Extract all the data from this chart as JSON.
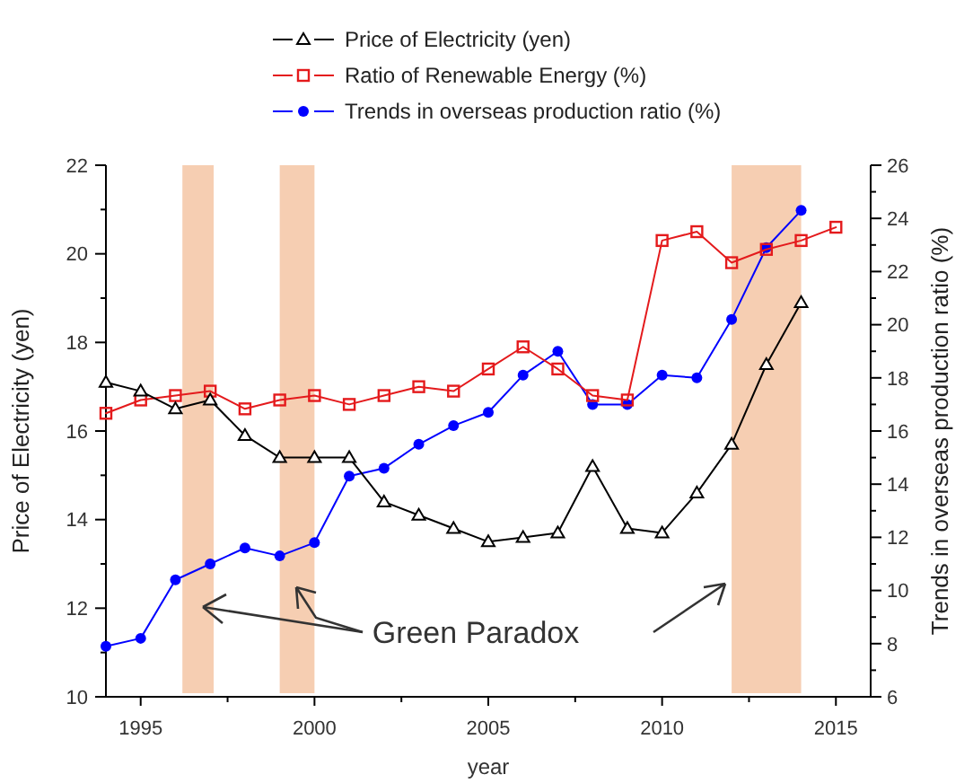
{
  "chart_data": {
    "type": "line",
    "xlabel": "year",
    "ylabel": "Price of Electricity (yen)",
    "y2label": "Trends in overseas production ratio (%)",
    "xlim": [
      1994,
      2016
    ],
    "xticks": [
      {
        "value": 1995,
        "label": "1995"
      },
      {
        "value": 1997.5,
        "label": null
      },
      {
        "value": 2000,
        "label": "2000"
      },
      {
        "value": 2002.5,
        "label": null
      },
      {
        "value": 2005,
        "label": "2005"
      },
      {
        "value": 2007.5,
        "label": null
      },
      {
        "value": 2010,
        "label": "2010"
      },
      {
        "value": 2012.5,
        "label": null
      },
      {
        "value": 2015,
        "label": "2015"
      }
    ],
    "ylim": [
      10,
      22
    ],
    "yticks": [
      10,
      {
        "value": 11,
        "label": null
      },
      12,
      {
        "value": 13,
        "label": null
      },
      14,
      {
        "value": 15,
        "label": null
      },
      16,
      {
        "value": 17,
        "label": null
      },
      18,
      {
        "value": 19,
        "label": null
      },
      20,
      {
        "value": 21,
        "label": null
      },
      22
    ],
    "y2lim": [
      6,
      26
    ],
    "y2ticks": [
      6,
      {
        "value": 7,
        "label": null
      },
      8,
      {
        "value": 9,
        "label": null
      },
      10,
      {
        "value": 11,
        "label": null
      },
      12,
      {
        "value": 13,
        "label": null
      },
      14,
      {
        "value": 15,
        "label": null
      },
      16,
      {
        "value": 17,
        "label": null
      },
      18,
      {
        "value": 19,
        "label": null
      },
      20,
      {
        "value": 21,
        "label": null
      },
      22,
      {
        "value": 23,
        "label": null
      },
      24,
      {
        "value": 25,
        "label": null
      },
      26
    ],
    "legend": "top",
    "grid": false,
    "series": [
      {
        "name": "Price of Electricity (yen)",
        "color": "#000000",
        "marker": "triangle",
        "x": [
          1994,
          1995,
          1996,
          1997,
          1998,
          1999,
          2000,
          2001,
          2002,
          2003,
          2004,
          2005,
          2006,
          2007,
          2008,
          2009,
          2010,
          2011,
          2012,
          2013,
          2014
        ],
        "values": [
          17.1,
          16.9,
          16.5,
          16.7,
          15.9,
          15.4,
          15.4,
          15.4,
          14.4,
          14.1,
          13.8,
          13.5,
          13.6,
          13.7,
          15.2,
          13.8,
          13.7,
          14.6,
          15.7,
          17.5,
          18.9
        ]
      },
      {
        "name": "Ratio of Renewable Energy (%)",
        "color": "#e41a1c",
        "marker": "square",
        "x": [
          1994,
          1995,
          1996,
          1997,
          1998,
          1999,
          2000,
          2001,
          2002,
          2003,
          2004,
          2005,
          2006,
          2007,
          2008,
          2009,
          2010,
          2011,
          2012,
          2013,
          2014,
          2015
        ],
        "values": [
          16.4,
          16.7,
          16.8,
          16.9,
          16.5,
          16.7,
          16.8,
          16.6,
          16.8,
          17.0,
          16.9,
          17.4,
          17.9,
          17.4,
          16.8,
          16.7,
          20.3,
          20.5,
          19.8,
          20.1,
          20.3,
          20.6
        ]
      },
      {
        "name": "Trends in overseas production ratio (%)",
        "color": "#0000ff",
        "marker": "circle",
        "axis": "y2",
        "x": [
          1994,
          1995,
          1996,
          1997,
          1998,
          1999,
          2000,
          2001,
          2002,
          2003,
          2004,
          2005,
          2006,
          2007,
          2008,
          2009,
          2010,
          2011,
          2012,
          2013,
          2014
        ],
        "values": [
          7.9,
          8.2,
          10.4,
          11.0,
          11.6,
          11.3,
          11.8,
          14.3,
          14.6,
          15.5,
          16.2,
          16.7,
          18.1,
          19.0,
          17.0,
          17.0,
          18.1,
          18.0,
          20.2,
          22.9,
          24.3
        ]
      }
    ],
    "bands": [
      {
        "axis": "x",
        "from": 1996.2,
        "to": 1997.1,
        "color": "#f5c6a5"
      },
      {
        "axis": "x",
        "from": 1999,
        "to": 2000,
        "color": "#f5c6a5"
      },
      {
        "axis": "x",
        "from": 2012,
        "to": 2014,
        "color": "#f5c6a5"
      }
    ],
    "annotations": [
      "Green Paradox"
    ]
  }
}
